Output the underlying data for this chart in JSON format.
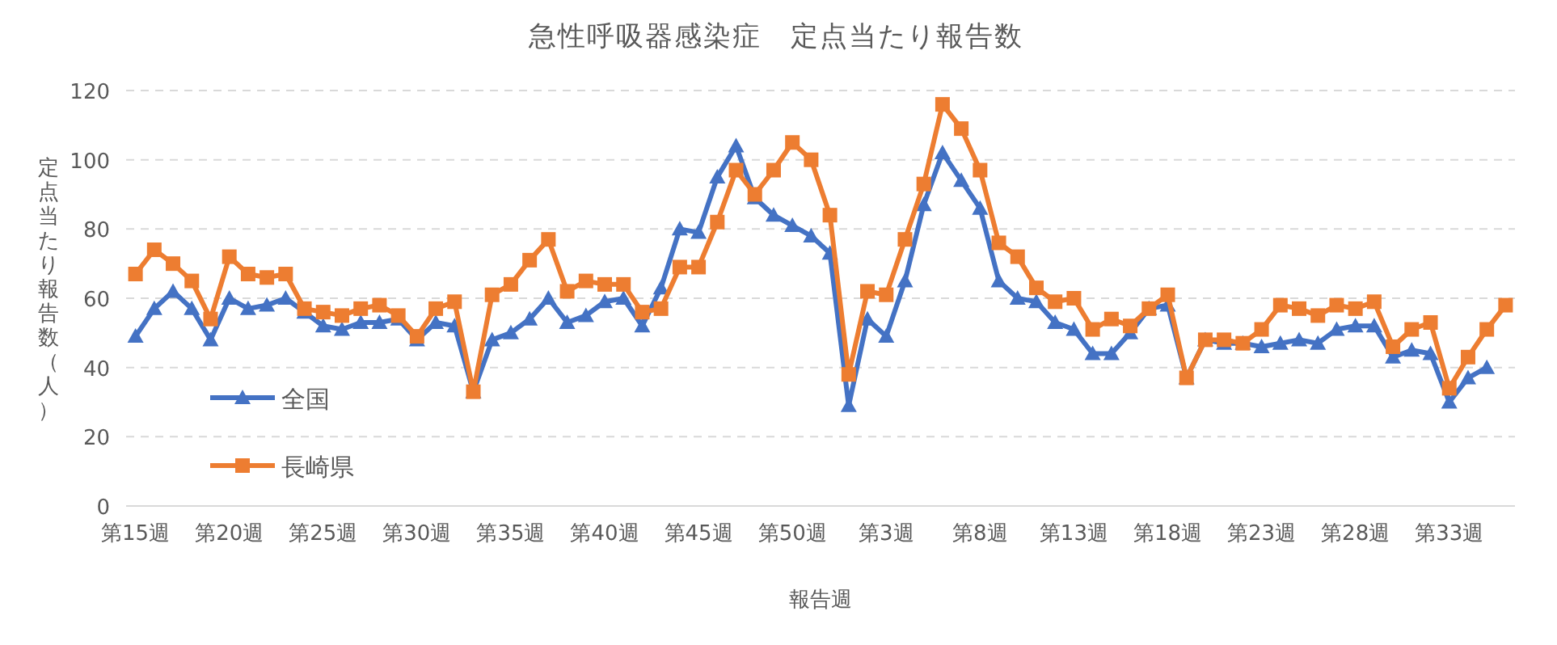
{
  "chart_data": {
    "type": "line",
    "title": "急性呼吸器感染症　定点当たり報告数",
    "xlabel": "報告週",
    "ylabel": "定点当たり報告数（人）",
    "categories": [
      "第15週",
      null,
      null,
      null,
      null,
      "第20週",
      null,
      null,
      null,
      null,
      "第25週",
      null,
      null,
      null,
      null,
      "第30週",
      null,
      null,
      null,
      null,
      "第35週",
      null,
      null,
      null,
      null,
      "第40週",
      null,
      null,
      null,
      null,
      "第45週",
      null,
      null,
      null,
      null,
      "第50週",
      null,
      null,
      null,
      null,
      "第3週",
      null,
      null,
      null,
      null,
      "第8週",
      null,
      null,
      null,
      null,
      "第13週",
      null,
      null,
      null,
      null,
      "第18週",
      null,
      null,
      null,
      null,
      "第23週",
      null,
      null,
      null,
      null,
      "第28週",
      null,
      null,
      null,
      null,
      "第33週",
      null,
      null,
      null
    ],
    "series": [
      {
        "name": "全国",
        "color": "#4472c4",
        "marker": "triangle",
        "values": [
          49,
          57,
          62,
          57,
          48,
          60,
          57,
          58,
          60,
          56,
          52,
          51,
          53,
          53,
          54,
          48,
          53,
          52,
          33,
          48,
          50,
          54,
          60,
          53,
          55,
          59,
          60,
          52,
          63,
          80,
          79,
          95,
          104,
          89,
          84,
          81,
          78,
          73,
          29,
          54,
          49,
          65,
          87,
          102,
          94,
          86,
          65,
          60,
          59,
          53,
          51,
          44,
          44,
          50,
          57,
          58,
          37,
          48,
          47,
          47,
          46,
          47,
          48,
          47,
          51,
          52,
          52,
          43,
          45,
          44,
          30,
          37,
          40,
          null
        ]
      },
      {
        "name": "長崎県",
        "color": "#ed7d31",
        "marker": "square",
        "values": [
          67,
          74,
          70,
          65,
          54,
          72,
          67,
          66,
          67,
          57,
          56,
          55,
          57,
          58,
          55,
          49,
          57,
          59,
          33,
          61,
          64,
          71,
          77,
          62,
          65,
          64,
          64,
          56,
          57,
          69,
          69,
          82,
          97,
          90,
          97,
          105,
          100,
          84,
          38,
          62,
          61,
          77,
          93,
          116,
          109,
          97,
          76,
          72,
          63,
          59,
          60,
          51,
          54,
          52,
          57,
          61,
          37,
          48,
          48,
          47,
          51,
          58,
          57,
          55,
          58,
          57,
          59,
          46,
          51,
          53,
          34,
          43,
          51,
          58
        ]
      }
    ],
    "ylim": [
      0,
      120
    ],
    "yticks": [
      0,
      20,
      40,
      60,
      80,
      100,
      120
    ],
    "grid": "y",
    "legend": "left",
    "line_style": "solid"
  }
}
